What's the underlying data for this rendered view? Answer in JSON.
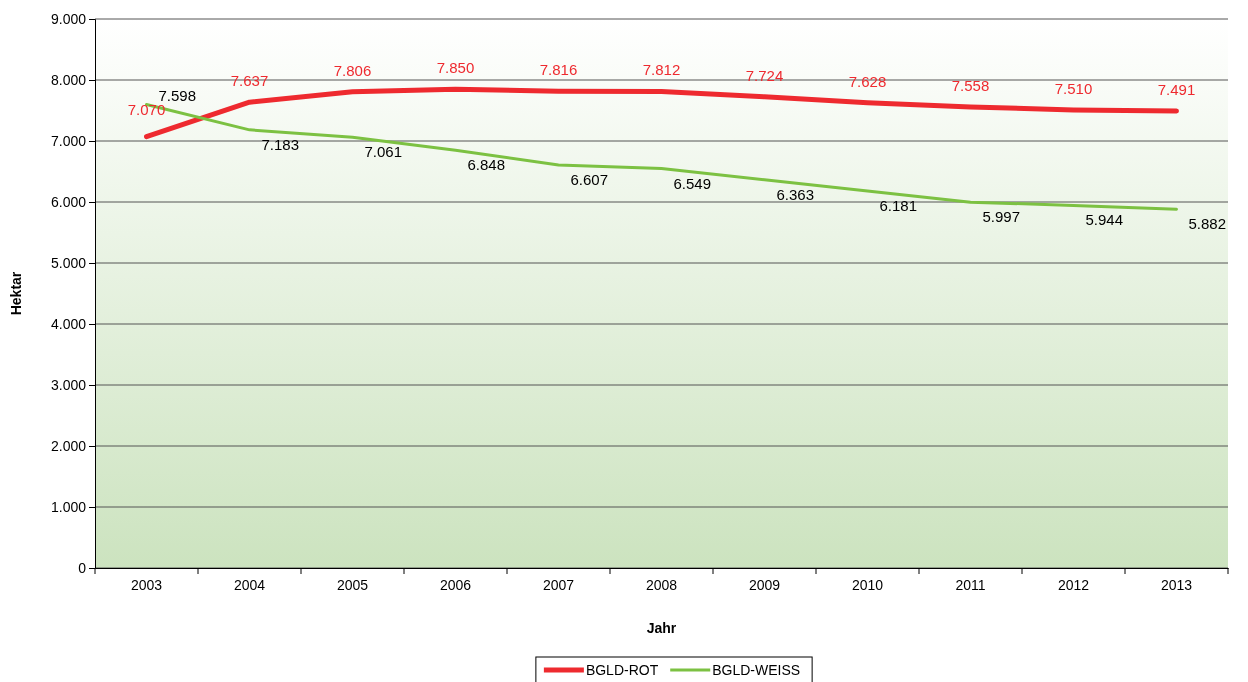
{
  "chart_data": {
    "type": "line",
    "xlabel": "Jahr",
    "ylabel": "Hektar",
    "categories": [
      "2003",
      "2004",
      "2005",
      "2006",
      "2007",
      "2008",
      "2009",
      "2010",
      "2011",
      "2012",
      "2013"
    ],
    "series": [
      {
        "name": "BGLD-ROT",
        "color": "#ee2a2f",
        "values": [
          7070,
          7637,
          7806,
          7850,
          7816,
          7812,
          7724,
          7628,
          7558,
          7510,
          7491
        ],
        "value_labels": [
          "7.070",
          "7.637",
          "7.806",
          "7.850",
          "7.816",
          "7.812",
          "7.724",
          "7.628",
          "7.558",
          "7.510",
          "7.491"
        ]
      },
      {
        "name": "BGLD-WEISS",
        "color": "#7cc142",
        "values": [
          7598,
          7183,
          7061,
          6848,
          6607,
          6549,
          6363,
          6181,
          5997,
          5944,
          5882
        ],
        "value_labels": [
          "7.598",
          "7.183",
          "7.061",
          "6.848",
          "6.607",
          "6.549",
          "6.363",
          "6.181",
          "5.997",
          "5.944",
          "5.882"
        ]
      }
    ],
    "ylim": [
      0,
      9000
    ],
    "yticks": [
      {
        "value": 0,
        "label": "0"
      },
      {
        "value": 1000,
        "label": "1.000"
      },
      {
        "value": 2000,
        "label": "2.000"
      },
      {
        "value": 3000,
        "label": "3.000"
      },
      {
        "value": 4000,
        "label": "4.000"
      },
      {
        "value": 5000,
        "label": "5.000"
      },
      {
        "value": 6000,
        "label": "6.000"
      },
      {
        "value": 7000,
        "label": "7.000"
      },
      {
        "value": 8000,
        "label": "8.000"
      },
      {
        "value": 9000,
        "label": "9.000"
      }
    ],
    "grid": "y",
    "legend": "bottom",
    "marker": "none",
    "line_style": "solid"
  }
}
